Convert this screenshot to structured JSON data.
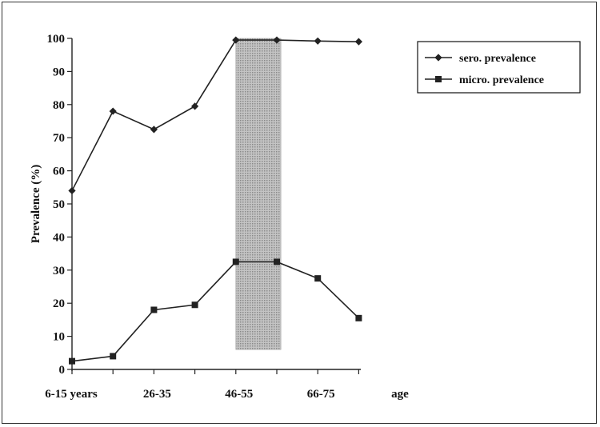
{
  "chart_data": {
    "type": "line",
    "x_tick_labels": [
      "6-15 years",
      "26-35",
      "46-55",
      "66-75"
    ],
    "x_axis_end_label": "age",
    "ylabel": "Prevalence (%)",
    "ylim": [
      0,
      100
    ],
    "y_ticks": [
      0,
      10,
      20,
      30,
      40,
      50,
      60,
      70,
      80,
      90,
      100
    ],
    "x_positions": [
      1,
      2,
      3,
      4,
      5,
      6,
      7,
      8
    ],
    "series": [
      {
        "name": "sero. prevalence",
        "marker": "diamond",
        "values": [
          54,
          78,
          72.5,
          79.5,
          99.5,
          99.5,
          99.2,
          99
        ]
      },
      {
        "name": "micro. prevalence",
        "marker": "square",
        "values": [
          2.5,
          4,
          18,
          19.5,
          32.5,
          32.5,
          27.5,
          15.5
        ]
      }
    ],
    "shaded_region": {
      "x_start": 5.0,
      "x_end": 6.1,
      "y_start": 6,
      "y_end": 100
    },
    "legend_position": "top-right",
    "grid": false,
    "line_color": "#222222",
    "shade_color": "#a9a9a9"
  }
}
